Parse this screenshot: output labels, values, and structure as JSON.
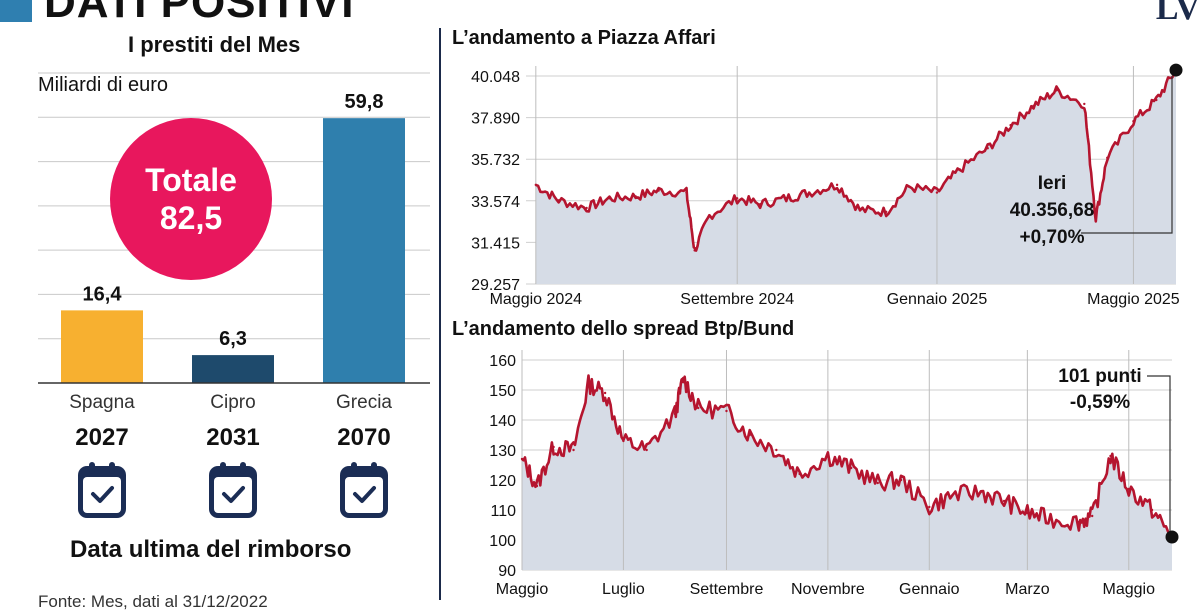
{
  "header": {
    "title": "DATI POSITIVI",
    "brand": "LV"
  },
  "left": {
    "title": "I prestiti del Mes",
    "unit": "Miliardi di euro",
    "total_label": "Totale",
    "total_value": "82,5",
    "footer": "Data ultima del rimborso",
    "source": "Fonte: Mes, dati al 31/12/2022"
  },
  "piazza": {
    "title": "L’andamento a Piazza Affari",
    "annotation": [
      "Ieri",
      "40.356,68",
      "+0,70%"
    ]
  },
  "spread": {
    "title": "L’andamento dello spread Btp/Bund",
    "annotation": [
      "101 punti",
      "-0,59%"
    ]
  },
  "colors": {
    "line": "#b5152f",
    "area": "#d6dce6",
    "bar_spagna": "#f7b030",
    "bar_cipro": "#1e4a6c",
    "bar_grecia": "#2f7fad",
    "total": "#e8175d"
  },
  "chart_data": [
    {
      "type": "bar",
      "title": "I prestiti del Mes",
      "ylabel": "Miliardi di euro",
      "categories": [
        "Spagna",
        "Cipro",
        "Grecia"
      ],
      "values": [
        16.4,
        6.3,
        59.8
      ],
      "value_labels": [
        "16,4",
        "6,3",
        "59,8"
      ],
      "years": [
        "2027",
        "2031",
        "2070"
      ],
      "ylim": [
        0,
        70
      ],
      "grid": true
    },
    {
      "type": "area",
      "title": "L’andamento a Piazza Affari",
      "x": [
        "2024-05-01",
        "2024-05-15",
        "2024-06-01",
        "2024-06-15",
        "2024-07-01",
        "2024-07-15",
        "2024-08-01",
        "2024-08-06",
        "2024-08-15",
        "2024-09-01",
        "2024-09-15",
        "2024-10-01",
        "2024-10-15",
        "2024-11-01",
        "2024-11-15",
        "2024-12-01",
        "2024-12-15",
        "2025-01-01",
        "2025-01-15",
        "2025-02-01",
        "2025-02-15",
        "2025-03-01",
        "2025-03-15",
        "2025-04-01",
        "2025-04-08",
        "2025-04-15",
        "2025-05-01",
        "2025-05-15",
        "2025-05-27"
      ],
      "y": [
        34400,
        33600,
        33200,
        33700,
        33800,
        34100,
        34000,
        31000,
        32800,
        33700,
        33400,
        33700,
        34000,
        34400,
        33100,
        33000,
        34300,
        34000,
        35200,
        36300,
        37500,
        38500,
        39300,
        38600,
        32700,
        35800,
        37700,
        38800,
        40356
      ],
      "yticks": [
        "40.048",
        "37.890",
        "35.732",
        "33.574",
        "31.415",
        "29.257"
      ],
      "ytick_values": [
        40048,
        37890,
        35732,
        33574,
        31415,
        29257
      ],
      "xticks": [
        "Maggio 2024",
        "Settembre 2024",
        "Gennaio 2025",
        "Maggio 2025"
      ],
      "xtick_dates": [
        "2024-05-01",
        "2024-09-01",
        "2025-01-01",
        "2025-05-01"
      ],
      "ylim": [
        29257,
        40048
      ]
    },
    {
      "type": "area",
      "title": "L’andamento dello spread Btp/Bund",
      "x": [
        "2024-05-01",
        "2024-05-10",
        "2024-05-20",
        "2024-06-01",
        "2024-06-10",
        "2024-06-20",
        "2024-07-01",
        "2024-07-15",
        "2024-08-01",
        "2024-08-06",
        "2024-08-15",
        "2024-09-01",
        "2024-09-15",
        "2024-10-01",
        "2024-10-15",
        "2024-11-01",
        "2024-11-15",
        "2024-12-01",
        "2024-12-15",
        "2025-01-01",
        "2025-01-15",
        "2025-02-01",
        "2025-02-15",
        "2025-03-01",
        "2025-03-15",
        "2025-04-01",
        "2025-04-09",
        "2025-04-20",
        "2025-05-01",
        "2025-05-15",
        "2025-05-27"
      ],
      "y": [
        127,
        118,
        131,
        130,
        152,
        149,
        133,
        130,
        142,
        154,
        144,
        143,
        135,
        130,
        122,
        128,
        124,
        119,
        120,
        111,
        115,
        116,
        113,
        109,
        107,
        106,
        108,
        128,
        117,
        110,
        101
      ],
      "yticks": [
        "160",
        "150",
        "140",
        "130",
        "120",
        "110",
        "100",
        "90"
      ],
      "ytick_values": [
        160,
        150,
        140,
        130,
        120,
        110,
        100,
        90
      ],
      "xticks": [
        "Maggio",
        "Luglio",
        "Settembre",
        "Novembre",
        "Gennaio",
        "Marzo",
        "Maggio"
      ],
      "xtick_dates": [
        "2024-05-01",
        "2024-07-01",
        "2024-09-01",
        "2024-11-01",
        "2025-01-01",
        "2025-03-01",
        "2025-05-01"
      ],
      "ylim": [
        90,
        160
      ]
    }
  ]
}
